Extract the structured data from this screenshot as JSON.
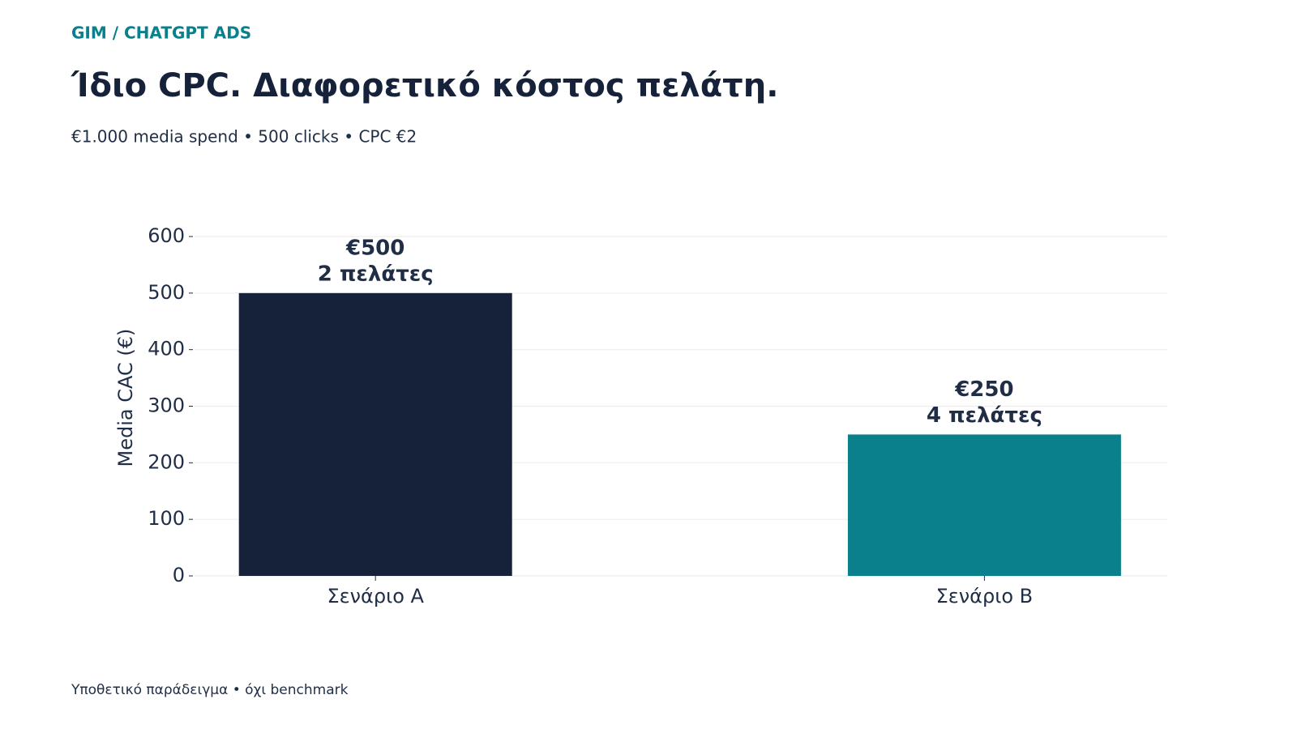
{
  "kicker": "GIM / CHATGPT ADS",
  "chart_data": {
    "type": "bar",
    "title": "Ίδιο CPC. Διαφορετικό κόστος πελάτη.",
    "subtitle": "€1.000 media spend • 500 clicks • CPC €2",
    "y_label": "Media CAC (€)",
    "categories": [
      "Σενάριο A",
      "Σενάριο B"
    ],
    "values": [
      500,
      250
    ],
    "value_labels": [
      "€500",
      "€250"
    ],
    "annotations": [
      "2 πελάτες",
      "4 πελάτες"
    ],
    "colors": [
      "#16223a",
      "#0a808c"
    ],
    "ylim": [
      0,
      600
    ],
    "yticks": [
      0,
      100,
      200,
      300,
      400,
      500,
      600
    ],
    "grid": true
  },
  "footnote": "Υποθετικό παράδειγμα • όχι benchmark"
}
